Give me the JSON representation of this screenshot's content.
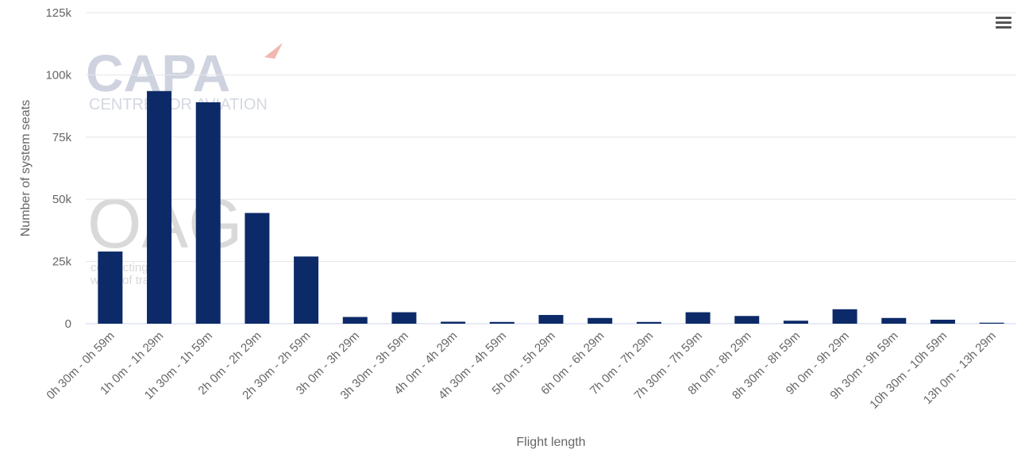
{
  "chart_data": {
    "type": "bar",
    "categories": [
      "0h 30m - 0h 59m",
      "1h 0m - 1h 29m",
      "1h 30m - 1h 59m",
      "2h 0m - 2h 29m",
      "2h 30m - 2h 59m",
      "3h 0m - 3h 29m",
      "3h 30m - 3h 59m",
      "4h 0m - 4h 29m",
      "4h 30m - 4h 59m",
      "5h 0m - 5h 29m",
      "6h 0m - 6h 29m",
      "7h 0m - 7h 29m",
      "7h 30m - 7h 59m",
      "8h 0m - 8h 29m",
      "8h 30m - 8h 59m",
      "9h 0m - 9h 29m",
      "9h 30m - 9h 59m",
      "10h 30m - 10h 59m",
      "13h 0m - 13h 29m"
    ],
    "values": [
      29000,
      93500,
      89000,
      44500,
      27000,
      2700,
      4600,
      800,
      700,
      3500,
      2300,
      700,
      4600,
      3100,
      1200,
      5800,
      2300,
      1600,
      400
    ],
    "ylim": [
      0,
      125000
    ],
    "yticks": [
      {
        "value": 0,
        "label": "0"
      },
      {
        "value": 25000,
        "label": "25k"
      },
      {
        "value": 50000,
        "label": "50k"
      },
      {
        "value": 75000,
        "label": "75k"
      },
      {
        "value": 100000,
        "label": "100k"
      },
      {
        "value": 125000,
        "label": "125k"
      }
    ],
    "xlabel": "Flight length",
    "ylabel": "Number of system seats",
    "bar_color": "#0d2a68",
    "grid": true,
    "legend": "none"
  },
  "watermarks": {
    "capa_logo": "CAPA",
    "capa_tagline": "CENTRE FOR AVIATION",
    "oag_logo": "OAG",
    "oag_tagline_1": "connecting the",
    "oag_tagline_2": "world of travel"
  },
  "menu": {
    "icon": "hamburger-menu-icon"
  }
}
